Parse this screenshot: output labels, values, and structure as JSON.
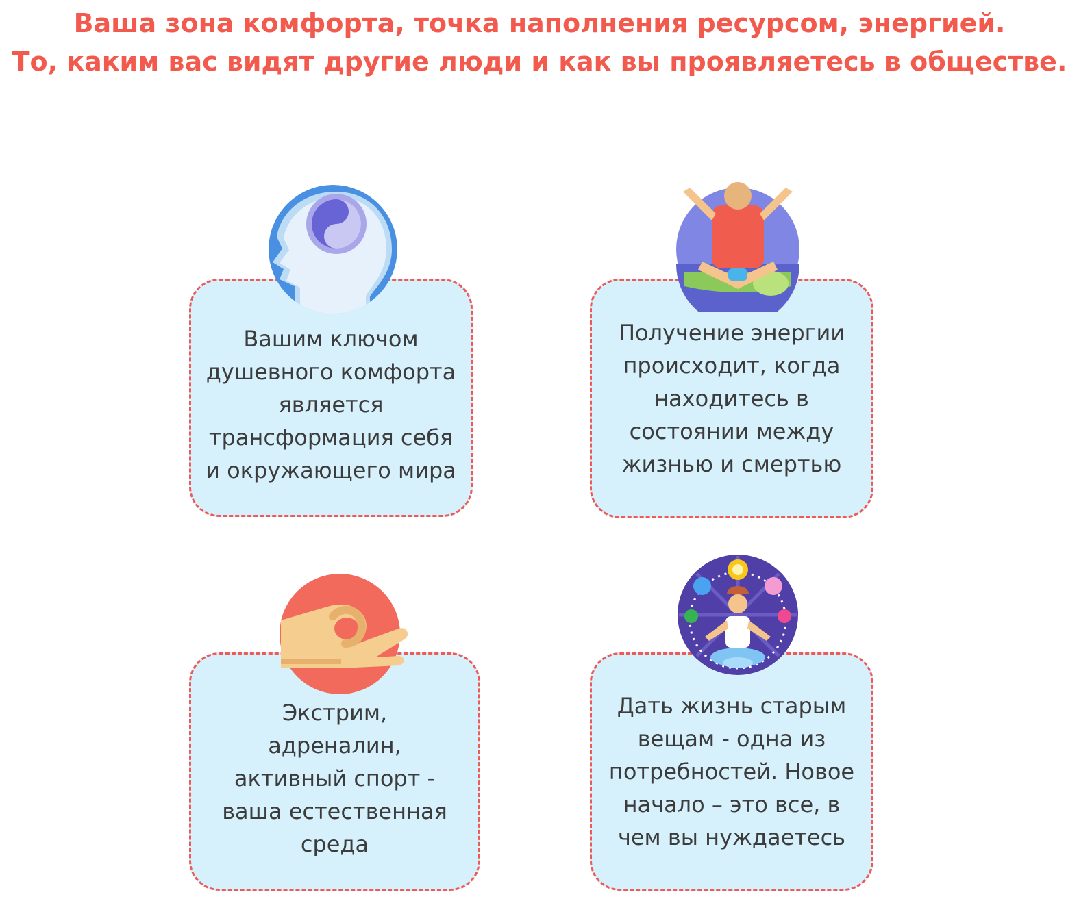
{
  "header": {
    "line1": "Ваша зона комфорта, точка наполнения ресурсом, энергией.",
    "line2": "То, каким вас видят другие люди и как вы проявляетесь в обществе."
  },
  "cards": [
    {
      "icon": "yin-yang-head-icon",
      "lines": [
        "Вашим ключом",
        "душевного комфорта",
        "является",
        "трансформация себя",
        "и окружающего мира"
      ]
    },
    {
      "icon": "energy-person-icon",
      "lines": [
        "Получение энергии",
        "происходит, когда",
        "находитесь в",
        "состоянии между",
        "жизнью и смертью"
      ]
    },
    {
      "icon": "hand-mudra-icon",
      "lines": [
        "Экстрим,",
        "адреналин,",
        "активный спорт -",
        "ваша естественная",
        "среда"
      ]
    },
    {
      "icon": "meditation-chakras-icon",
      "lines": [
        "Дать жизнь старым",
        "вещам - одна из",
        "потребностей. Новое",
        "начало – это все, в",
        "чем вы нуждаетесь"
      ]
    }
  ],
  "colors": {
    "accent": "#f25a4e",
    "card_bg": "#d6f1fb",
    "text": "#3c3c3c"
  }
}
